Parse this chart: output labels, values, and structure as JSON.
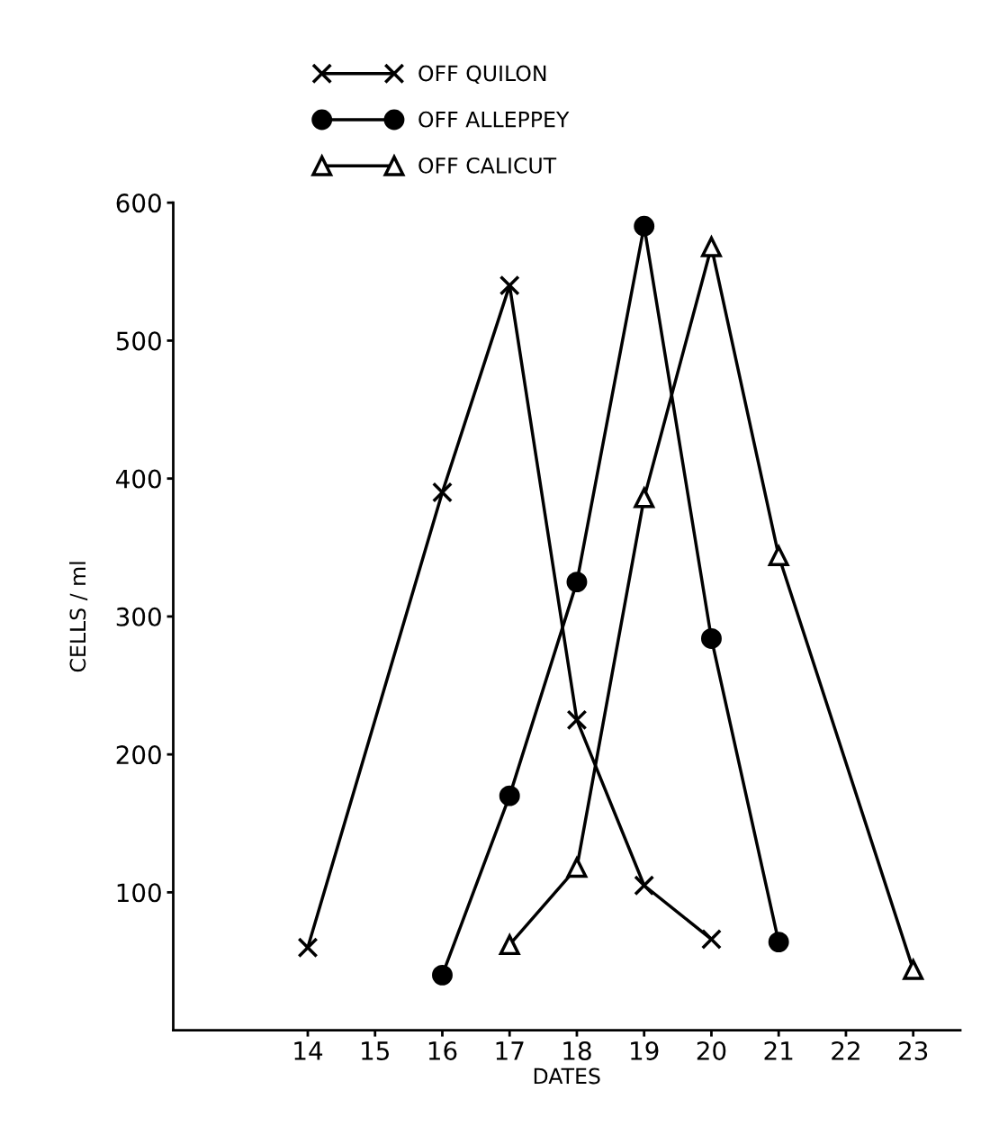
{
  "chart_data": {
    "type": "line",
    "xlabel": "DATES",
    "ylabel": "CELLS / ml",
    "xlim": [
      12,
      23.7
    ],
    "xticks": [
      14,
      15,
      16,
      17,
      18,
      19,
      20,
      21,
      22,
      23
    ],
    "ylim": [
      0,
      600
    ],
    "yticks": [
      100,
      200,
      300,
      400,
      500,
      600
    ],
    "grid": false,
    "legend": "top",
    "line_style": "solid",
    "series": [
      {
        "name": "OFF QUILON",
        "color": "#000000",
        "marker": "cross",
        "x": [
          14,
          16,
          17,
          18,
          19,
          20
        ],
        "values": [
          60,
          390,
          540,
          225,
          105,
          66
        ]
      },
      {
        "name": "OFF ALLEPPEY",
        "color": "#000000",
        "marker": "circle",
        "x": [
          16,
          17,
          18,
          19,
          20,
          21
        ],
        "values": [
          40,
          170,
          325,
          583,
          284,
          64
        ]
      },
      {
        "name": "OFF CALICUT",
        "color": "#000000",
        "marker": "triangle",
        "x": [
          17,
          18,
          19,
          20,
          21,
          23
        ],
        "values": [
          62,
          118,
          386,
          568,
          344,
          44
        ]
      }
    ]
  }
}
